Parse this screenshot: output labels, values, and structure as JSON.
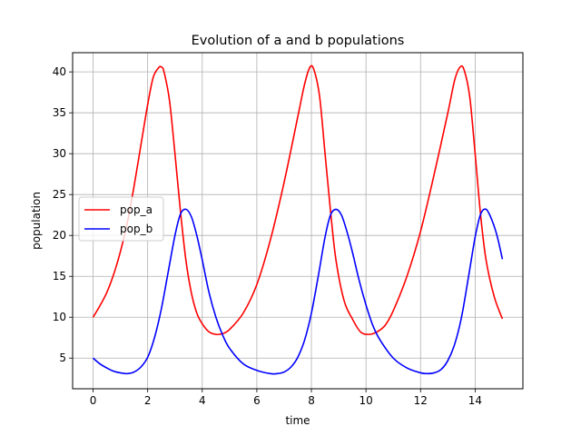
{
  "chart_data": {
    "type": "line",
    "title": "Evolution of a and b populations",
    "xlabel": "time",
    "ylabel": "population",
    "xlim": [
      -0.75,
      15.75
    ],
    "ylim": [
      1.25,
      42.35
    ],
    "xticks": [
      0,
      2,
      4,
      6,
      8,
      10,
      12,
      14
    ],
    "yticks": [
      5,
      10,
      15,
      20,
      25,
      30,
      35,
      40
    ],
    "grid": true,
    "legend_position": "center-left",
    "series": [
      {
        "name": "pop_a",
        "color": "#ff0000",
        "x": [
          0,
          0.25,
          0.5,
          0.75,
          1.0,
          1.25,
          1.5,
          1.75,
          2.0,
          2.2,
          2.4,
          2.5,
          2.6,
          2.8,
          3.0,
          3.2,
          3.4,
          3.6,
          3.8,
          4.0,
          4.25,
          4.5,
          4.75,
          5.0,
          5.5,
          6.0,
          6.5,
          7.0,
          7.5,
          7.75,
          7.95,
          8.1,
          8.3,
          8.5,
          8.7,
          8.9,
          9.2,
          9.5,
          9.8,
          10.1,
          10.4,
          10.7,
          11.0,
          11.5,
          12.0,
          12.5,
          13.0,
          13.25,
          13.45,
          13.6,
          13.8,
          14.0,
          14.2,
          14.4,
          14.7,
          15.0
        ],
        "values": [
          10.0,
          11.4,
          13.0,
          15.2,
          18.0,
          21.5,
          26.0,
          31.0,
          36.0,
          39.3,
          40.5,
          40.6,
          40.0,
          36.5,
          30.0,
          23.0,
          17.0,
          13.0,
          10.5,
          9.2,
          8.2,
          7.9,
          8.0,
          8.5,
          10.5,
          14.0,
          19.5,
          26.5,
          34.5,
          38.5,
          40.6,
          40.2,
          37.0,
          30.0,
          23.0,
          17.0,
          12.0,
          9.8,
          8.2,
          7.9,
          8.2,
          9.0,
          10.8,
          15.0,
          20.5,
          27.5,
          35.0,
          39.0,
          40.6,
          40.2,
          37.0,
          30.0,
          22.5,
          17.0,
          12.5,
          9.8
        ]
      },
      {
        "name": "pop_b",
        "color": "#0000ff",
        "x": [
          0,
          0.25,
          0.5,
          0.75,
          1.0,
          1.25,
          1.5,
          1.75,
          2.0,
          2.25,
          2.5,
          2.75,
          3.0,
          3.2,
          3.4,
          3.6,
          3.8,
          4.0,
          4.25,
          4.5,
          4.75,
          5.0,
          5.5,
          6.0,
          6.5,
          6.75,
          7.0,
          7.25,
          7.5,
          7.75,
          8.0,
          8.25,
          8.5,
          8.7,
          8.9,
          9.1,
          9.3,
          9.5,
          9.75,
          10.0,
          10.25,
          10.5,
          11.0,
          11.5,
          12.0,
          12.25,
          12.5,
          12.75,
          13.0,
          13.25,
          13.5,
          13.75,
          14.0,
          14.2,
          14.4,
          14.6,
          14.8,
          15.0
        ],
        "values": [
          5.0,
          4.3,
          3.8,
          3.4,
          3.2,
          3.1,
          3.3,
          3.9,
          5.1,
          7.5,
          11.0,
          15.5,
          20.0,
          22.6,
          23.2,
          22.3,
          20.0,
          17.0,
          13.0,
          10.0,
          7.8,
          6.2,
          4.3,
          3.5,
          3.1,
          3.1,
          3.3,
          3.9,
          5.1,
          7.2,
          10.5,
          15.0,
          19.8,
          22.5,
          23.2,
          22.5,
          20.5,
          18.0,
          14.5,
          11.5,
          9.0,
          7.3,
          5.0,
          3.8,
          3.2,
          3.1,
          3.2,
          3.6,
          4.7,
          6.7,
          10.0,
          14.8,
          19.8,
          22.6,
          23.2,
          22.0,
          20.0,
          17.1
        ]
      }
    ]
  }
}
